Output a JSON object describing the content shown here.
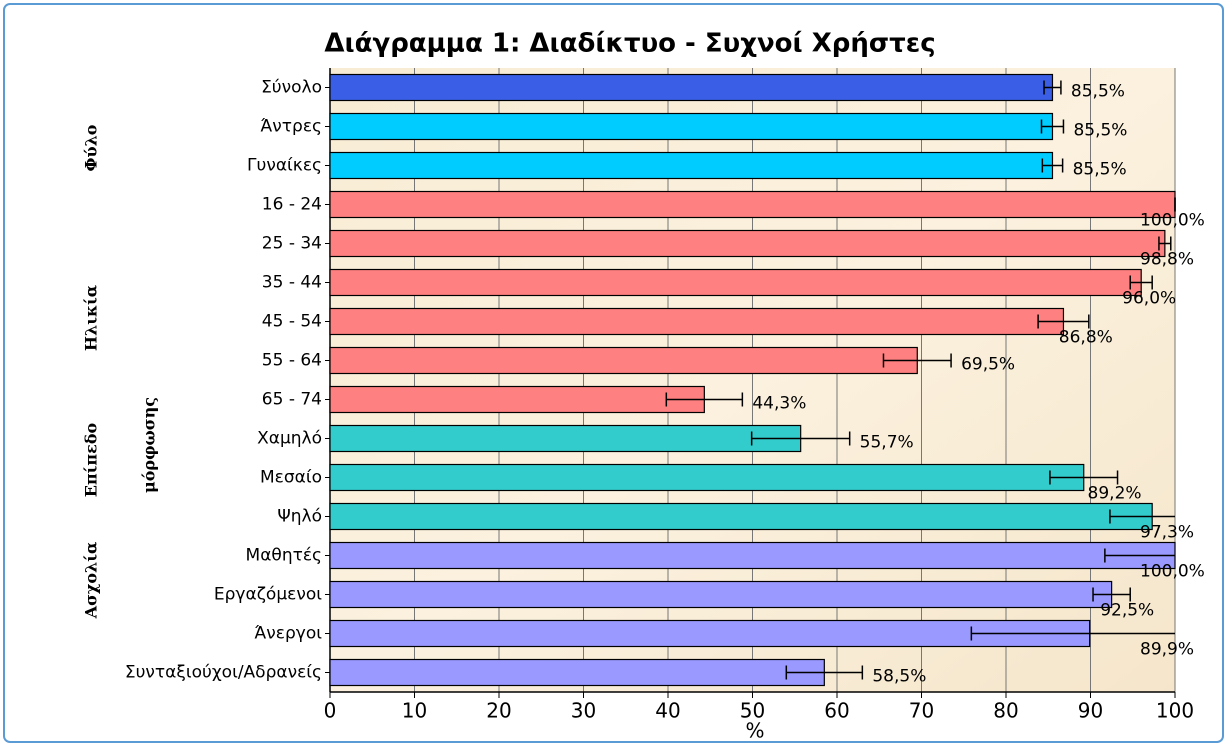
{
  "chart_data": {
    "type": "bar",
    "orientation": "horizontal",
    "title": "Διάγραμμα 1: Διαδίκτυο - Συχνοί Χρήστες",
    "xlabel": "%",
    "groups": [
      "Φύλο",
      "Ηλικία",
      "Επίπεδο",
      "μόρφωσης",
      "Ασχολία"
    ],
    "categories": [
      "Σύνολο",
      "Άντρες",
      "Γυναίκες",
      "16 - 24",
      "25 - 34",
      "35 - 44",
      "45 - 54",
      "55 - 64",
      "65 - 74",
      "Χαμηλό",
      "Μεσαίο",
      "Ψηλό",
      "Μαθητές",
      "Εργαζόμενοι",
      "Άνεργοι",
      "Συνταξιούχοι/Αδρανείς"
    ],
    "values": [
      85.5,
      85.5,
      85.5,
      100.0,
      98.8,
      96.0,
      86.8,
      69.5,
      44.3,
      55.7,
      89.2,
      97.3,
      100.0,
      92.5,
      89.9,
      58.5
    ],
    "value_labels": [
      "85,5%",
      "85,5%",
      "85,5%",
      "100,0%",
      "98,8%",
      "96,0%",
      "86,8%",
      "69,5%",
      "44,3%",
      "55,7%",
      "89,2%",
      "97,3%",
      "100,0%",
      "92,5%",
      "89,9%",
      "58,5%"
    ],
    "errors": [
      1.0,
      1.3,
      1.2,
      0,
      0.7,
      1.3,
      3.0,
      4.0,
      4.5,
      5.8,
      4.0,
      5.0,
      8.3,
      2.2,
      14.0,
      4.5
    ],
    "colors": [
      "#3a5fe6",
      "#00ccff",
      "#00ccff",
      "#ff8080",
      "#ff8080",
      "#ff8080",
      "#ff8080",
      "#ff8080",
      "#ff8080",
      "#33cccc",
      "#33cccc",
      "#33cccc",
      "#9999ff",
      "#9999ff",
      "#9999ff",
      "#9999ff"
    ],
    "xlim": [
      0,
      100
    ],
    "xticks": [
      0,
      10,
      20,
      30,
      40,
      50,
      60,
      70,
      80,
      90,
      100
    ],
    "grid": true
  }
}
